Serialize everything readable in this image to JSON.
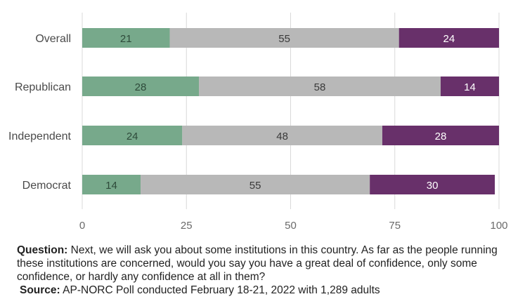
{
  "chart_data": {
    "type": "bar",
    "orientation": "horizontal",
    "stacked": true,
    "categories": [
      "Overall",
      "Republican",
      "Independent",
      "Democrat"
    ],
    "series": [
      {
        "values": [
          21,
          28,
          24,
          14
        ],
        "color": "#77a98b",
        "label_color": "#2e4a3a"
      },
      {
        "values": [
          55,
          58,
          48,
          55
        ],
        "color": "#b8b8b8",
        "label_color": "#3a3a3a"
      },
      {
        "values": [
          24,
          14,
          28,
          30
        ],
        "color": "#68306a",
        "label_color": "#ffffff"
      }
    ],
    "xticks": [
      0,
      25,
      50,
      75,
      100
    ],
    "xlim": [
      0,
      100
    ],
    "grid": "vertical",
    "grid_color": "#d9d9d9"
  },
  "notes": {
    "question_label": "Question:",
    "question_text": " Next, we will ask you about some institutions in this country. As far as the people running these institutions are concerned, would you say you have a great deal of confidence, only some confidence, or hardly any confidence at all in them?",
    "source_label": "Source:",
    "source_text": " AP-NORC Poll conducted February 18-21, 2022 with 1,289 adults"
  }
}
